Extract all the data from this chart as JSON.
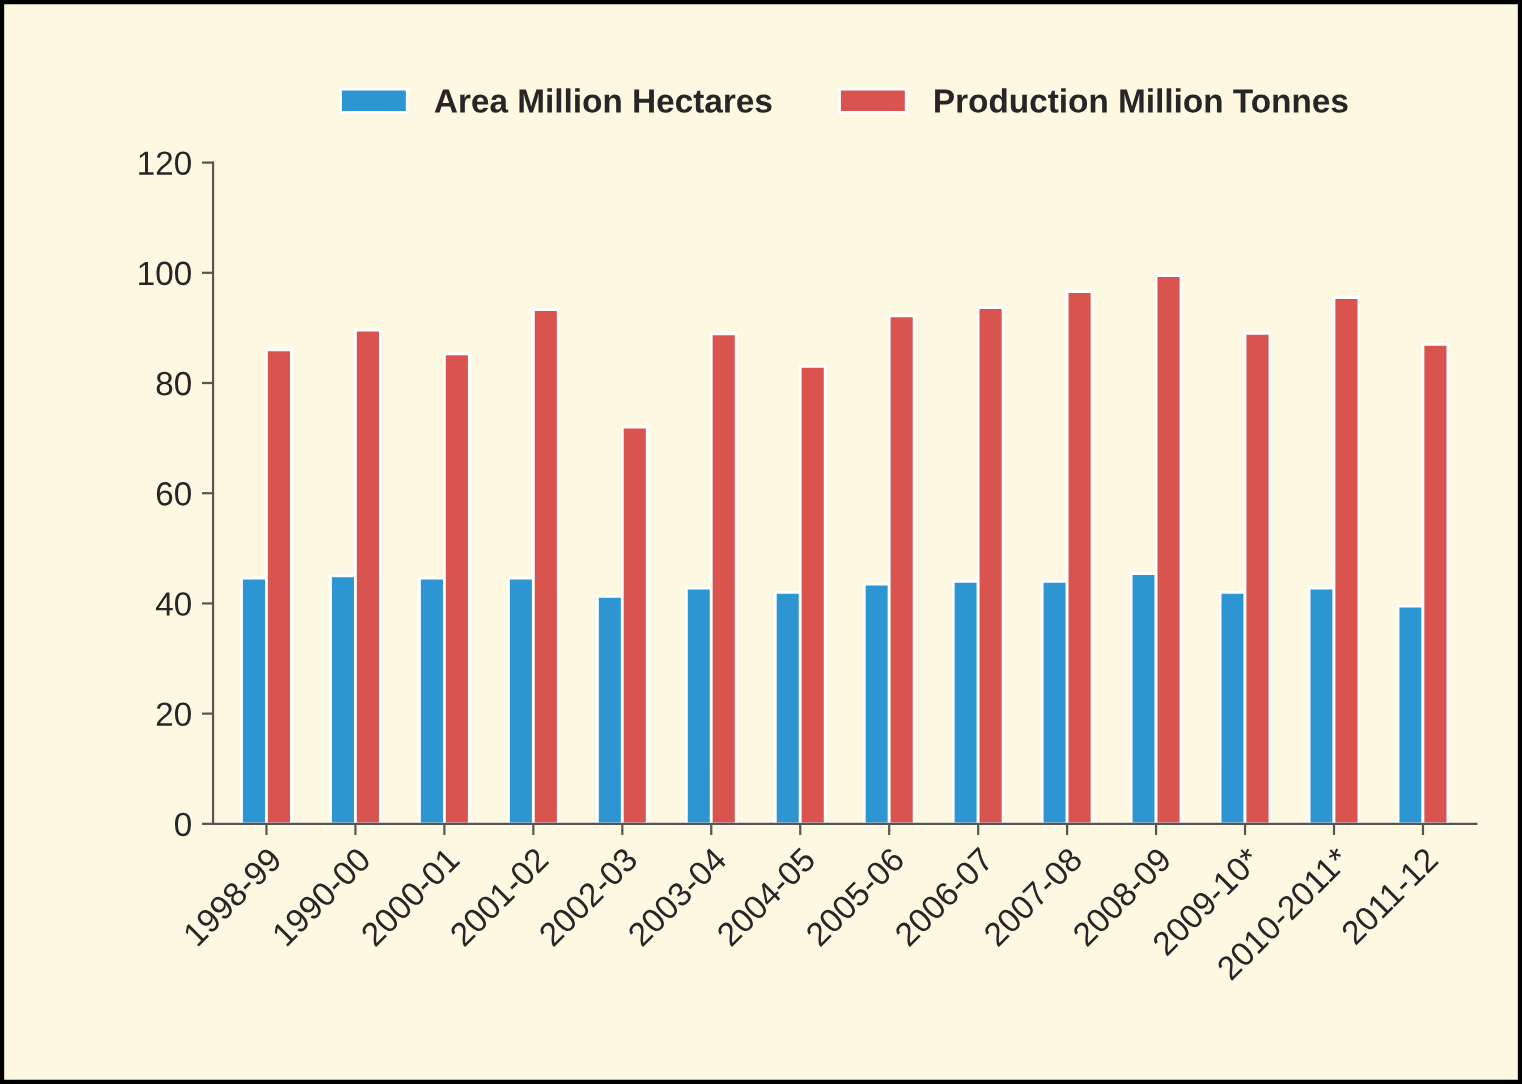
{
  "chart_data": {
    "type": "bar",
    "categories": [
      "1998-99",
      "1990-00",
      "2000-01",
      "2001-02",
      "2002-03",
      "2003-04",
      "2004-05",
      "2005-06",
      "2006-07",
      "2007-08",
      "2008-09",
      "2009-10*",
      "2010-2011*",
      "2011-12"
    ],
    "series": [
      {
        "name": "Area Million Hectares",
        "color": "#2e95d3",
        "values": [
          44.6,
          45,
          44.6,
          44.6,
          41.3,
          42.8,
          42,
          43.5,
          44,
          44,
          45.4,
          42,
          42.8,
          39.5
        ]
      },
      {
        "name": "Production Million Tonnes",
        "color": "#d9534f",
        "values": [
          86,
          89.6,
          85.3,
          93.3,
          72,
          88.9,
          83,
          92.2,
          93.7,
          96.6,
          99.5,
          89,
          95.5,
          87
        ]
      }
    ],
    "ylim": [
      0,
      120
    ],
    "yticks": [
      0,
      20,
      40,
      60,
      80,
      100,
      120
    ],
    "grid": false,
    "legend": "top"
  }
}
